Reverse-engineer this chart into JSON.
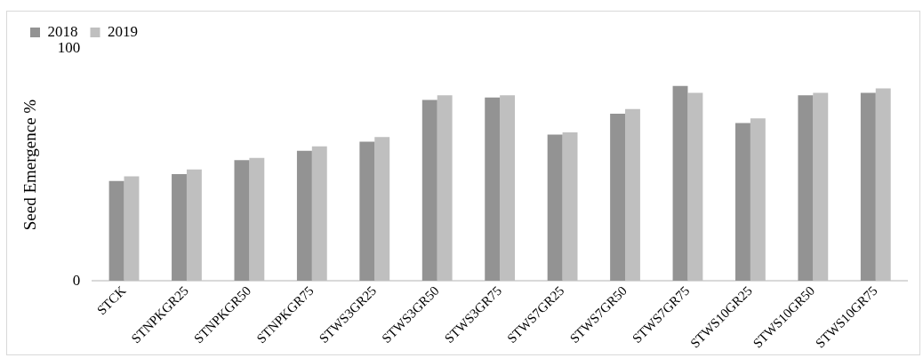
{
  "chart_data": {
    "type": "bar",
    "ylabel": "Seed Emergence %",
    "categories": [
      "STCK",
      "STNPKGR25",
      "STNPKGR50",
      "STNPKGR75",
      "STWS3GR25",
      "STWS3GR50",
      "STWS3GR75",
      "STWS7GR25",
      "STWS7GR50",
      "STWS7GR75",
      "STWS10GR25",
      "STWS10GR50",
      "STWS10GR75"
    ],
    "series": [
      {
        "name": "2018",
        "color": "#939393",
        "values": [
          43,
          46,
          52,
          56,
          60,
          78,
          79,
          63,
          72,
          84,
          68,
          80,
          81
        ]
      },
      {
        "name": "2019",
        "color": "#bfbfbf",
        "values": [
          45,
          48,
          53,
          58,
          62,
          80,
          80,
          64,
          74,
          81,
          70,
          81,
          83
        ]
      }
    ],
    "ylim": [
      0,
      100
    ],
    "yticks": [
      0,
      100
    ],
    "grid": false,
    "legend": "top left"
  }
}
